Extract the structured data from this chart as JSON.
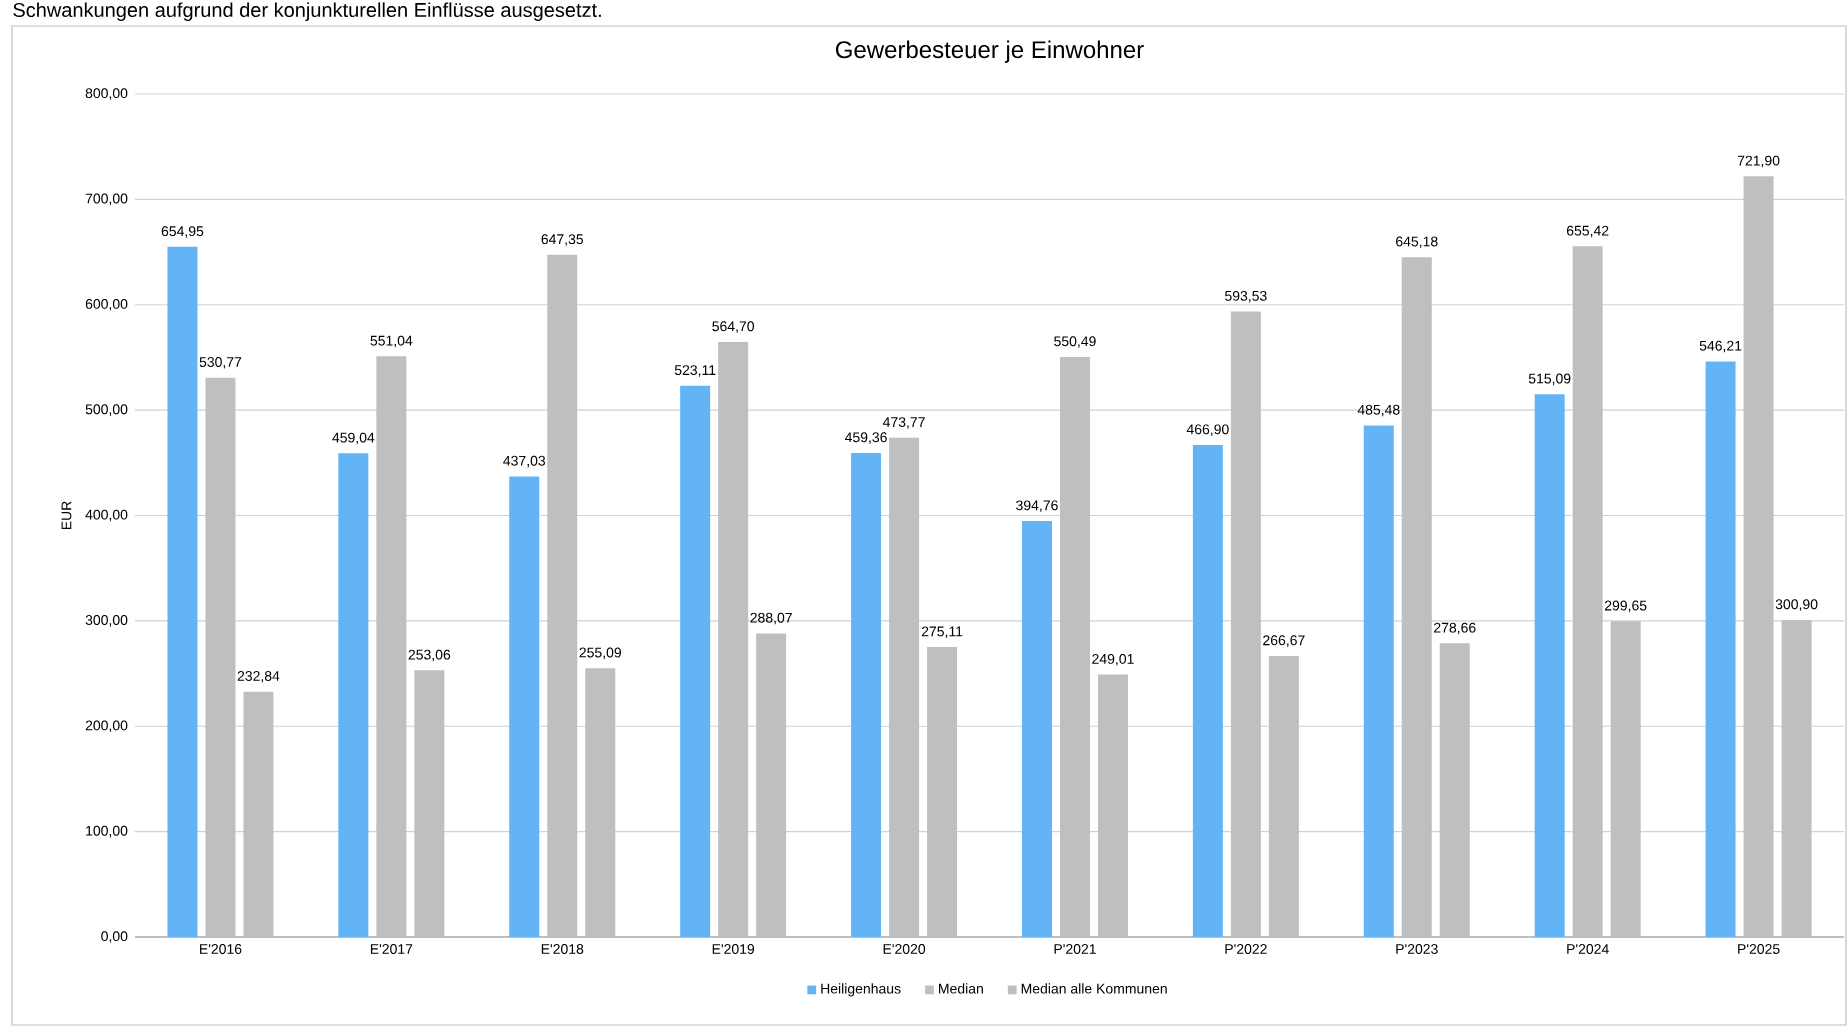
{
  "chart_data": {
    "type": "bar",
    "title": "Gewerbesteuer je Einwohner",
    "ylabel": "EUR",
    "annotations": [
      "Schwankungen aufgrund der konjunkturellen Einflüsse ausgesetzt."
    ],
    "categories": [
      "E'2016",
      "E'2017",
      "E'2018",
      "E'2019",
      "E'2020",
      "P'2021",
      "P'2022",
      "P'2023",
      "P'2024",
      "P'2025"
    ],
    "series": [
      {
        "name": "Heiligenhaus",
        "color": "#63b4f6",
        "values": [
          654.95,
          459.04,
          437.03,
          523.11,
          459.36,
          394.76,
          466.9,
          485.48,
          515.09,
          546.21
        ],
        "value_labels": [
          "654,95",
          "459,04",
          "437,03",
          "523,11",
          "459,36",
          "394,76",
          "466,90",
          "485,48",
          "515,09",
          "546,21"
        ]
      },
      {
        "name": "Median",
        "color": "#bfbfbf",
        "values": [
          530.77,
          551.04,
          647.35,
          564.7,
          473.77,
          550.49,
          593.53,
          645.18,
          655.42,
          721.9
        ],
        "value_labels": [
          "530,77",
          "551,04",
          "647,35",
          "564,70",
          "473,77",
          "550,49",
          "593,53",
          "645,18",
          "655,42",
          "721,90"
        ]
      },
      {
        "name": "Median alle Kommunen",
        "color": "#bfbfbf",
        "values": [
          232.84,
          253.06,
          255.09,
          288.07,
          275.11,
          249.01,
          266.67,
          278.66,
          299.65,
          300.9
        ],
        "value_labels": [
          "232,84",
          "253,06",
          "255,09",
          "288,07",
          "275,11",
          "249,01",
          "266,67",
          "278,66",
          "299,65",
          "300,90"
        ]
      }
    ],
    "ylim": [
      0,
      800
    ],
    "yticks": [
      {
        "value": 0,
        "label": "0,00"
      },
      {
        "value": 100,
        "label": "100,00"
      },
      {
        "value": 200,
        "label": "200,00"
      },
      {
        "value": 300,
        "label": "300,00"
      },
      {
        "value": 400,
        "label": "400,00"
      },
      {
        "value": 500,
        "label": "500,00"
      },
      {
        "value": 600,
        "label": "600,00"
      },
      {
        "value": 700,
        "label": "700,00"
      },
      {
        "value": 800,
        "label": "800,00"
      }
    ],
    "grid": "y",
    "legend": "bottom"
  }
}
